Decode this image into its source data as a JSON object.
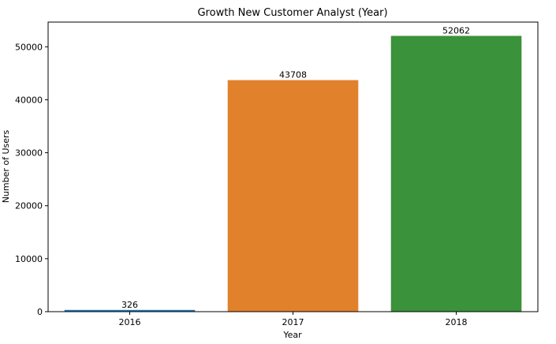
{
  "chart_data": {
    "type": "bar",
    "title": "Growth New Customer Analyst (Year)",
    "xlabel": "Year",
    "ylabel": "Number of Users",
    "categories": [
      "2016",
      "2017",
      "2018"
    ],
    "values": [
      326,
      43708,
      52062
    ],
    "data_labels": [
      "326",
      "43708",
      "52062"
    ],
    "colors": [
      "#1f77b4",
      "#e1812c",
      "#3a923a"
    ],
    "ylim": [
      0,
      54665
    ],
    "yticks": [
      0,
      10000,
      20000,
      30000,
      40000,
      50000
    ],
    "ytick_labels": [
      "0",
      "10000",
      "20000",
      "30000",
      "40000",
      "50000"
    ],
    "grid": false,
    "legend": "none"
  }
}
